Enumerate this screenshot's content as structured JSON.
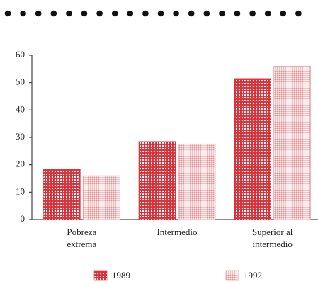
{
  "chart_data": {
    "type": "bar",
    "categories": [
      "Pobreza extrema",
      "Intermedio",
      "Superior al intermedio"
    ],
    "series": [
      {
        "name": "1989",
        "color": "#d8333b",
        "values": [
          18.5,
          28.5,
          51.5
        ]
      },
      {
        "name": "1992",
        "color": "#e8898c",
        "values": [
          16,
          27.5,
          56
        ]
      }
    ],
    "ylim": [
      0,
      60
    ],
    "yticks": [
      0,
      10,
      20,
      30,
      40,
      50,
      60
    ],
    "grid": false
  }
}
